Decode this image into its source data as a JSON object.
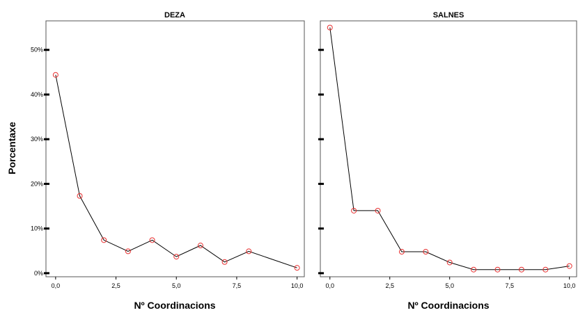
{
  "chart_data": {
    "type": "line",
    "ylabel": "Porcentaxe",
    "marker_color": "#e83030",
    "line_color": "#000000",
    "grid": false,
    "panels": [
      {
        "title": "DEZA",
        "xlabel": "Nº Coordinacions",
        "xlim": [
          -0.4,
          10.3
        ],
        "ylim": [
          -0.8,
          56.5
        ],
        "xticks": [
          0,
          2.5,
          5,
          7.5,
          10
        ],
        "xtick_labels": [
          "0,0",
          "2,5",
          "5,0",
          "7,5",
          "10,0"
        ],
        "yticks": [
          0,
          10,
          20,
          30,
          40,
          50
        ],
        "ytick_labels": [
          "0%",
          "10%",
          "20%",
          "30%",
          "40%",
          "50%"
        ],
        "x": [
          0,
          1,
          2,
          3,
          4,
          5,
          6,
          7,
          8,
          10
        ],
        "y": [
          44.4,
          17.3,
          7.4,
          4.9,
          7.4,
          3.7,
          6.2,
          2.5,
          4.9,
          1.2
        ]
      },
      {
        "title": "SALNES",
        "xlabel": "Nº Coordinacions",
        "xlim": [
          -0.4,
          10.3
        ],
        "ylim": [
          -0.8,
          56.5
        ],
        "xticks": [
          0,
          2.5,
          5,
          7.5,
          10
        ],
        "xtick_labels": [
          "0,0",
          "2,5",
          "5,0",
          "7,5",
          "10,0"
        ],
        "yticks": [
          0,
          10,
          20,
          30,
          40,
          50
        ],
        "ytick_labels": [
          "",
          "",
          "",
          "",
          "",
          ""
        ],
        "x": [
          0,
          1,
          2,
          3,
          4,
          5,
          6,
          7,
          8,
          9,
          10
        ],
        "y": [
          55.0,
          14.0,
          14.0,
          4.8,
          4.8,
          2.4,
          0.8,
          0.8,
          0.8,
          0.8,
          1.6
        ]
      }
    ]
  }
}
